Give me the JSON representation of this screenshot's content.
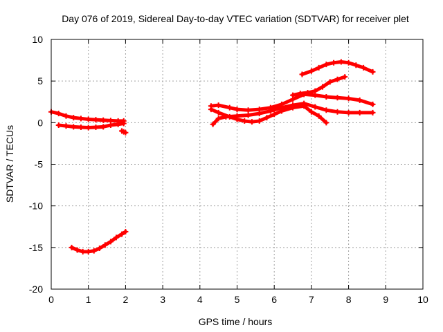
{
  "chart_data": {
    "type": "scatter",
    "title": "Day 076 of 2019, Sidereal Day-to-day VTEC variation (SDTVAR) for receiver plet",
    "xlabel": "GPS time / hours",
    "ylabel": "SDTVAR / TECUs",
    "xlim": [
      0,
      10
    ],
    "ylim": [
      -20,
      10
    ],
    "xticks": [
      0,
      1,
      2,
      3,
      4,
      5,
      6,
      7,
      8,
      9,
      10
    ],
    "yticks": [
      -20,
      -15,
      -10,
      -5,
      0,
      5,
      10
    ],
    "grid": true,
    "legend": "none",
    "marker": "plus",
    "series_color": "#ff0000",
    "grid_color": "#a0a0a0",
    "series": [
      {
        "name": "track-a",
        "x": [
          0.0,
          0.2,
          0.4,
          0.6,
          0.8,
          1.0,
          1.2,
          1.4,
          1.6,
          1.8,
          1.95
        ],
        "y": [
          1.3,
          1.1,
          0.8,
          0.6,
          0.5,
          0.4,
          0.35,
          0.3,
          0.25,
          0.2,
          0.2
        ]
      },
      {
        "name": "track-b",
        "x": [
          0.2,
          0.4,
          0.6,
          0.8,
          1.0,
          1.2,
          1.4,
          1.6,
          1.8,
          1.95
        ],
        "y": [
          -0.3,
          -0.4,
          -0.5,
          -0.55,
          -0.6,
          -0.55,
          -0.5,
          -0.3,
          -0.2,
          -0.1
        ]
      },
      {
        "name": "track-c",
        "x": [
          1.9,
          1.95,
          2.0
        ],
        "y": [
          -1.0,
          -1.1,
          -1.2
        ]
      },
      {
        "name": "track-d",
        "x": [
          0.55,
          0.7,
          0.85,
          1.0,
          1.15,
          1.3,
          1.45,
          1.6,
          1.75,
          1.9,
          2.0
        ],
        "y": [
          -15.0,
          -15.3,
          -15.5,
          -15.5,
          -15.4,
          -15.1,
          -14.7,
          -14.3,
          -13.8,
          -13.4,
          -13.1
        ]
      },
      {
        "name": "track-e",
        "x": [
          4.3,
          4.5,
          4.8,
          5.0,
          5.3,
          5.6,
          5.9,
          6.2,
          6.5,
          6.8,
          7.1,
          7.4,
          7.7,
          8.0,
          8.3,
          8.65
        ],
        "y": [
          2.0,
          2.1,
          1.8,
          1.6,
          1.5,
          1.6,
          1.8,
          2.2,
          2.8,
          3.4,
          3.3,
          3.1,
          3.0,
          2.9,
          2.7,
          2.2
        ]
      },
      {
        "name": "track-f",
        "x": [
          4.3,
          4.5,
          4.8,
          5.0,
          5.2,
          5.4,
          5.6,
          5.8,
          6.0,
          6.2,
          6.5,
          6.8,
          7.0,
          7.2,
          7.4
        ],
        "y": [
          1.6,
          1.2,
          0.7,
          0.4,
          0.2,
          0.1,
          0.2,
          0.6,
          1.0,
          1.4,
          1.8,
          2.0,
          1.3,
          0.8,
          0.0
        ]
      },
      {
        "name": "track-g",
        "x": [
          4.35,
          4.5,
          4.7,
          5.0,
          5.3,
          5.6,
          5.9,
          6.2,
          6.5,
          6.8,
          7.1,
          7.4,
          7.7,
          8.0,
          8.3,
          8.65
        ],
        "y": [
          -0.2,
          0.5,
          0.7,
          0.8,
          0.9,
          1.1,
          1.4,
          1.8,
          2.1,
          2.3,
          1.9,
          1.5,
          1.3,
          1.2,
          1.2,
          1.2
        ]
      },
      {
        "name": "track-h",
        "x": [
          6.5,
          6.7,
          6.9,
          7.1,
          7.3,
          7.5,
          7.7,
          7.9
        ],
        "y": [
          3.3,
          3.5,
          3.6,
          3.8,
          4.3,
          4.9,
          5.2,
          5.5
        ]
      },
      {
        "name": "track-i",
        "x": [
          6.75,
          7.0,
          7.2,
          7.4,
          7.6,
          7.8,
          8.0,
          8.2,
          8.4,
          8.65
        ],
        "y": [
          5.8,
          6.2,
          6.6,
          7.0,
          7.2,
          7.3,
          7.2,
          6.9,
          6.6,
          6.1
        ]
      }
    ]
  }
}
